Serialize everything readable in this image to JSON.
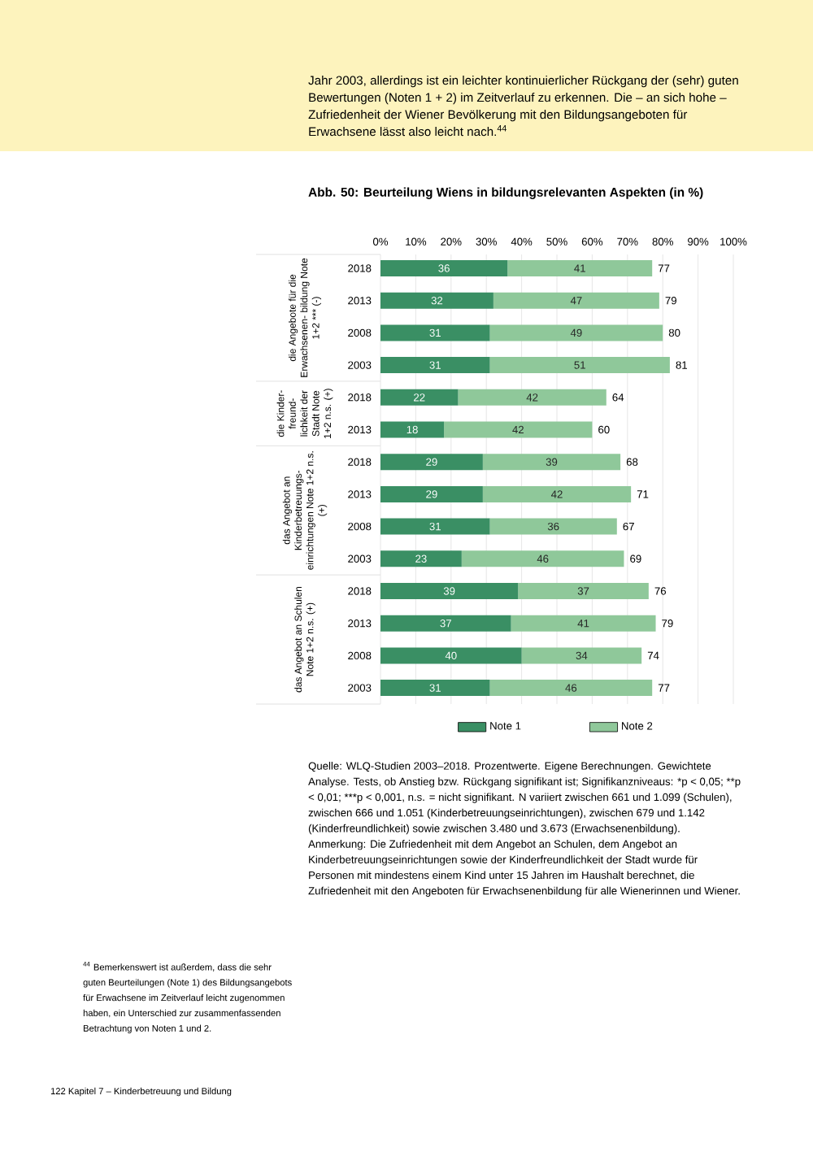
{
  "chart_data": {
    "type": "bar",
    "orientation": "horizontal",
    "stacked": true,
    "title": "Abb. 50: Beurteilung Wiens in bildungsrelevanten Aspekten (in %)",
    "categories": [
      "2018",
      "2013",
      "2008",
      "2003",
      "2018",
      "2013",
      "2018",
      "2013",
      "2008",
      "2003",
      "2018",
      "2013",
      "2008",
      "2003"
    ],
    "series": [
      {
        "name": "Note 1",
        "color": "#3a8f64",
        "values": [
          36,
          32,
          31,
          31,
          22,
          18,
          29,
          29,
          31,
          23,
          39,
          37,
          40,
          31
        ]
      },
      {
        "name": "Note 2",
        "color": "#8fc89a",
        "values": [
          41,
          47,
          49,
          51,
          42,
          42,
          39,
          42,
          36,
          46,
          37,
          41,
          34,
          46
        ]
      }
    ],
    "totals": [
      "77",
      "79",
      "80",
      "81",
      "64",
      "60",
      "68",
      "71",
      "67",
      "69",
      "76",
      "79",
      "74",
      "77"
    ],
    "data_labels": true,
    "xlim": [
      0,
      100
    ],
    "xticks": [
      {
        "value": 0,
        "label": "0%"
      },
      {
        "value": 10,
        "label": "10%"
      },
      {
        "value": 20,
        "label": "20%"
      },
      {
        "value": 30,
        "label": "30%"
      },
      {
        "value": 40,
        "label": "40%"
      },
      {
        "value": 50,
        "label": "50%"
      },
      {
        "value": 60,
        "label": "60%"
      },
      {
        "value": 70,
        "label": "70%"
      },
      {
        "value": 80,
        "label": "80%"
      },
      {
        "value": 90,
        "label": "90%"
      },
      {
        "value": 100,
        "label": "100%"
      }
    ],
    "grid": "x",
    "legend": "bottom",
    "annotations": [
      "die Angebote für die Erwachsenen- bildung Note 1+2 *** (-)",
      "die Kinder- freund- lichkeit der Stadt Note 1+2 n.s. (+)",
      "das Angebot an Kinderbetreuungs- einrichtungen Note 1+2 n.s. (+)",
      "das Angebot an Schulen Note 1+2 n.s. (+)",
      "Jahr 2003, allerdings ist ein leichter kontinuierlicher Rückgang der (sehr) guten Bewertungen (Noten 1 + 2) im Zeitverlauf zu erkennen. Die – an sich hohe – Zufriedenheit der Wiener Bevölkerung mit den Bildungsangeboten für Erwachsene lässt also leicht nach.$^{44}$",
      "Quelle: WLQ-Studien 2003–2018. Prozentwerte. Eigene Berechnungen. Gewichtete Analyse. Tests, ob Anstieg bzw. Rückgang signifikant ist; Signifikanzniveaus: *p < 0,05;",
      "**p < 0,01;",
      "***p < 0,001, n.s. = nicht signifikant. N variiert zwischen 661 und 1.099 (Schulen), zwischen 666 und 1.051 (Kinderbetreuungseinrichtungen), zwischen 679 und 1.142 (Kinderfreundlichkeit) sowie zwischen 3.480 und 3.673 (Erwachsenenbildung). Anmerkung: Die Zufriedenheit mit dem Angebot an Schulen, dem Angebot an Kinderbetreuungseinrichtungen sowie der Kinderfreundlichkeit der Stadt wurde für Personen mit mindestens einem Kind unter 15 Jahren im Haushalt berechnet, die Zufriedenheit mit den Angeboten für Erwachsenenbildung für alle Wienerinnen und Wiener.",
      "$^{44}$ Bemerkenswert ist außerdem, dass die sehr guten Beurteilungen (Note 1) des Bildungsangebots für Erwachsene im Zeitverlauf leicht zugenommen haben, ein Unterschied zur zusammenfassenden Betrachtung von Noten 1 und 2.",
      "122   Kapitel 7 – Kinderbetreuung und Bildung"
    ]
  }
}
